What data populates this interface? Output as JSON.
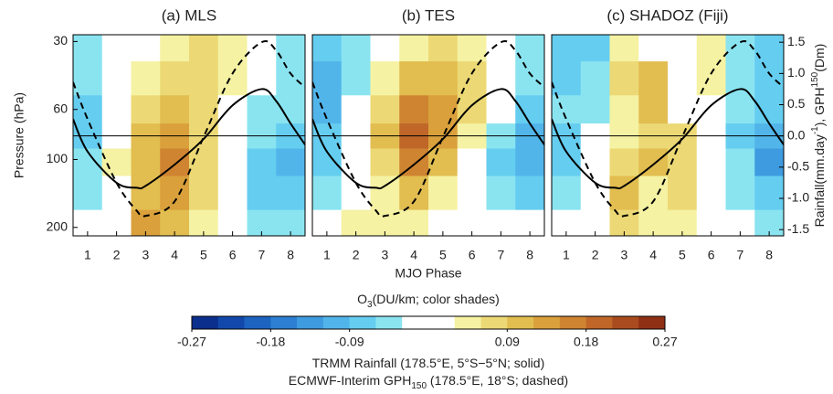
{
  "chart_data": [
    {
      "type": "contour",
      "title": "(a) MLS",
      "ylabel": "Pressure (hPa)",
      "phases": [
        1,
        2,
        3,
        4,
        5,
        6,
        7,
        8
      ],
      "levels": [
        30,
        45,
        60,
        80,
        100,
        140,
        200
      ],
      "z": [
        [
          -0.06,
          0,
          0,
          0.03,
          0.06,
          0.03,
          -0.03,
          -0.06
        ],
        [
          -0.06,
          -0.03,
          0.03,
          0.06,
          0.06,
          0.03,
          -0.03,
          -0.06
        ],
        [
          -0.09,
          -0.03,
          0.06,
          0.09,
          0.06,
          0,
          -0.06,
          -0.06
        ],
        [
          -0.09,
          0,
          0.09,
          0.12,
          0.06,
          0,
          -0.06,
          -0.09
        ],
        [
          -0.06,
          0.03,
          0.09,
          0.15,
          0.06,
          0,
          -0.09,
          -0.12
        ],
        [
          -0.06,
          0,
          0.09,
          0.12,
          0.06,
          -0.03,
          -0.09,
          -0.09
        ],
        [
          -0.03,
          0,
          0.12,
          0.09,
          0.03,
          -0.03,
          -0.06,
          -0.06
        ]
      ],
      "xlim": [
        0.5,
        8.5
      ],
      "xticks": [
        1,
        2,
        3,
        4,
        5,
        6,
        7,
        8
      ],
      "ylim": [
        28,
        218
      ],
      "ylog": true,
      "yticks": [
        30,
        60,
        100,
        200
      ],
      "y2lim": [
        -1.6,
        1.62
      ],
      "x": [
        0.5,
        1,
        2,
        2.7,
        3,
        4,
        5,
        6,
        7,
        7.5,
        8,
        8.5
      ],
      "series": [
        {
          "color": "#000000",
          "dashed": false,
          "axis": "y2",
          "values": [
            0.27,
            -0.25,
            -0.75,
            -0.83,
            -0.8,
            -0.46,
            -0.05,
            0.49,
            0.75,
            0.56,
            0.2,
            -0.14
          ]
        },
        {
          "color": "#000000",
          "dashed": true,
          "axis": "y2",
          "values": [
            0.86,
            0.27,
            -0.75,
            -1.2,
            -1.28,
            -1.05,
            -0.02,
            1.0,
            1.5,
            1.37,
            1.0,
            0.78
          ]
        }
      ]
    },
    {
      "type": "contour",
      "title": "(b) TES",
      "xlabel": "MJO Phase",
      "phases": [
        1,
        2,
        3,
        4,
        5,
        6,
        7,
        8
      ],
      "levels": [
        30,
        45,
        60,
        80,
        100,
        140,
        200
      ],
      "z": [
        [
          -0.09,
          -0.06,
          0,
          0.03,
          0.06,
          0.03,
          0,
          -0.06
        ],
        [
          -0.12,
          -0.06,
          0.03,
          0.09,
          0.09,
          0.06,
          0,
          -0.06
        ],
        [
          -0.12,
          -0.03,
          0.06,
          0.15,
          0.12,
          0.06,
          -0.03,
          -0.09
        ],
        [
          -0.09,
          0,
          0.09,
          0.18,
          0.12,
          0.03,
          -0.06,
          -0.12
        ],
        [
          -0.09,
          0,
          0.06,
          0.15,
          0.09,
          0,
          -0.09,
          -0.12
        ],
        [
          -0.06,
          -0.03,
          0.03,
          0.09,
          0.03,
          -0.03,
          -0.06,
          -0.09
        ],
        [
          0,
          0.03,
          0.03,
          0.03,
          0,
          -0.03,
          -0.03,
          -0.03
        ]
      ],
      "xlim": [
        0.5,
        8.5
      ],
      "xticks": [
        1,
        2,
        3,
        4,
        5,
        6,
        7,
        8
      ],
      "ylim": [
        28,
        218
      ],
      "ylog": true,
      "y2lim": [
        -1.6,
        1.62
      ],
      "x": [
        0.5,
        1,
        2,
        2.7,
        3,
        4,
        5,
        6,
        7,
        7.5,
        8,
        8.5
      ],
      "series": [
        {
          "color": "#000000",
          "dashed": false,
          "axis": "y2",
          "values": [
            0.27,
            -0.25,
            -0.75,
            -0.83,
            -0.8,
            -0.46,
            -0.05,
            0.49,
            0.75,
            0.56,
            0.2,
            -0.14
          ]
        },
        {
          "color": "#000000",
          "dashed": true,
          "axis": "y2",
          "values": [
            0.86,
            0.27,
            -0.75,
            -1.2,
            -1.28,
            -1.05,
            -0.02,
            1.0,
            1.5,
            1.37,
            1.0,
            0.78
          ]
        }
      ]
    },
    {
      "type": "contour",
      "title": "(c) SHADOZ (Fiji)",
      "y2label_parts": [
        "Rainfall(mm.day",
        "-1",
        "),  GPH",
        "150",
        "(Dm)"
      ],
      "phases": [
        1,
        2,
        3,
        4,
        5,
        6,
        7,
        8
      ],
      "levels": [
        30,
        45,
        60,
        80,
        100,
        140,
        200
      ],
      "z": [
        [
          -0.09,
          -0.09,
          0.03,
          0,
          -0.03,
          0.03,
          -0.06,
          -0.09
        ],
        [
          -0.09,
          -0.06,
          0.06,
          0.09,
          -0.03,
          0.03,
          -0.06,
          -0.09
        ],
        [
          -0.06,
          -0.06,
          0.03,
          0.09,
          0,
          0,
          -0.06,
          -0.09
        ],
        [
          -0.09,
          -0.03,
          0.03,
          0.06,
          0.06,
          -0.03,
          -0.09,
          -0.12
        ],
        [
          -0.09,
          -0.03,
          0.06,
          0.09,
          0.06,
          0,
          -0.06,
          -0.15
        ],
        [
          -0.06,
          0,
          0.09,
          0.03,
          0.06,
          -0.03,
          -0.06,
          -0.09
        ],
        [
          -0.03,
          -0.03,
          0.06,
          0.03,
          0.03,
          0,
          -0.03,
          -0.06
        ]
      ],
      "xlim": [
        0.5,
        8.5
      ],
      "xticks": [
        1,
        2,
        3,
        4,
        5,
        6,
        7,
        8
      ],
      "ylim": [
        28,
        218
      ],
      "ylog": true,
      "y2lim": [
        -1.6,
        1.62
      ],
      "y2ticks": [
        1.5,
        {
          "value": 1,
          "label": "1.0"
        },
        0.5,
        {
          "value": 0,
          "label": "0.0"
        },
        -0.5,
        {
          "value": -1,
          "label": "-1.0"
        },
        -1.5
      ],
      "x": [
        0.5,
        1,
        2,
        2.7,
        3,
        4,
        5,
        6,
        7,
        7.5,
        8,
        8.5
      ],
      "series": [
        {
          "color": "#000000",
          "dashed": false,
          "axis": "y2",
          "values": [
            0.27,
            -0.25,
            -0.75,
            -0.83,
            -0.8,
            -0.46,
            -0.05,
            0.49,
            0.75,
            0.56,
            0.2,
            -0.14
          ]
        },
        {
          "color": "#000000",
          "dashed": true,
          "axis": "y2",
          "values": [
            0.86,
            0.27,
            -0.75,
            -1.2,
            -1.28,
            -1.05,
            -0.02,
            1.0,
            1.5,
            1.37,
            1.0,
            0.78
          ]
        }
      ]
    },
    {
      "type": "colorbar",
      "title_parts": [
        "O",
        "3",
        "(DU/km; color shades)"
      ],
      "bounds": [
        -0.27,
        -0.24,
        -0.21,
        -0.18,
        -0.15,
        -0.12,
        -0.09,
        -0.06,
        -0.03,
        0,
        0.03,
        0.06,
        0.09,
        0.12,
        0.15,
        0.18,
        0.21,
        0.24,
        0.27
      ],
      "colors": [
        "#0a2f8c",
        "#1248aa",
        "#1d63c0",
        "#2c7fd2",
        "#3e9be0",
        "#52b5ea",
        "#65cdf0",
        "#8ae4f0",
        "#ffffff",
        "#ffffff",
        "#f5f2a3",
        "#ecd975",
        "#e2bd50",
        "#d9a03b",
        "#cf8431",
        "#bf6628",
        "#a94b1f",
        "#8f3014"
      ],
      "ticks": [
        -0.27,
        -0.18,
        -0.09,
        0.09,
        0.18,
        0.27
      ],
      "notes": [
        [
          "TRMM Rainfall (178.5°E, 5°S−5°N; solid)"
        ],
        [
          "ECMWF-Interim GPH",
          "150",
          " (178.5°E, 18°S; dashed)"
        ]
      ]
    }
  ]
}
